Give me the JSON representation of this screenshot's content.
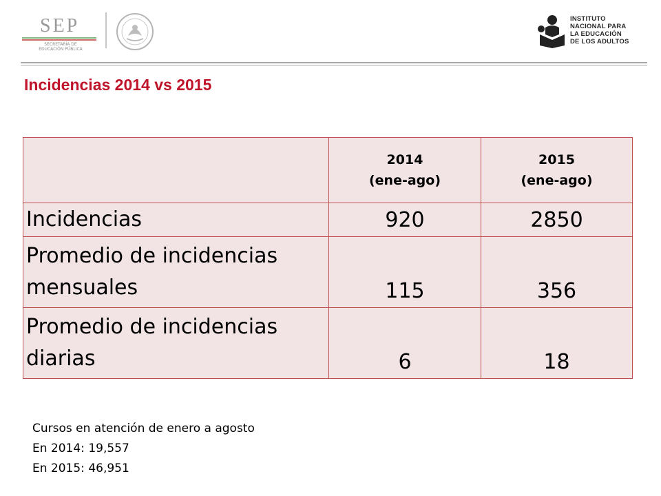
{
  "header": {
    "sep_logo_text": "SEP",
    "sep_subtitle_line1": "SECRETARÍA DE",
    "sep_subtitle_line2": "EDUCACIÓN PÚBLICA",
    "inea_lines": [
      "INSTITUTO",
      "NACIONAL PARA",
      "LA EDUCACIÓN",
      "DE LOS ADULTOS"
    ]
  },
  "title": "Incidencias 2014 vs 2015",
  "table": {
    "headers": [
      {
        "year": "2014",
        "period": "(ene-ago)"
      },
      {
        "year": "2015",
        "period": "(ene-ago)"
      }
    ],
    "rows": [
      {
        "label": "Incidencias",
        "v2014": "920",
        "v2015": "2850"
      },
      {
        "label_line1": "Promedio de incidencias",
        "label_line2": "mensuales",
        "v2014": "115",
        "v2015": "356"
      },
      {
        "label_line1": "Promedio de incidencias",
        "label_line2": "diarias",
        "v2014": "6",
        "v2015": "18"
      }
    ]
  },
  "notes": [
    "Cursos en atención de enero a agosto",
    "En 2014: 19,557",
    "En 2015: 46,951"
  ],
  "colors": {
    "title": "#c0142b",
    "table_border": "#c0504d",
    "table_fill": "#f2e4e4"
  }
}
